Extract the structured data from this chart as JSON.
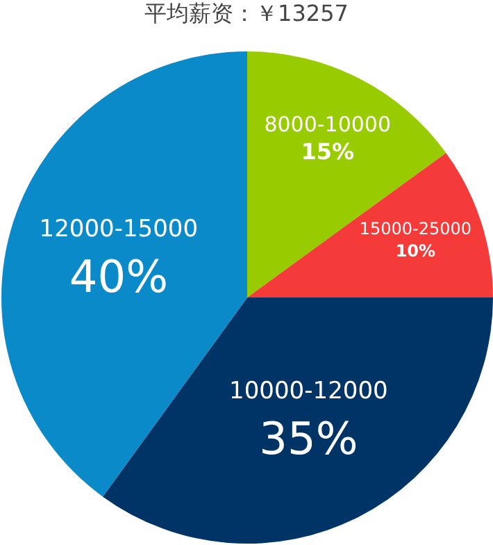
{
  "chart_data": {
    "type": "pie",
    "title": "平均薪资：￥13257",
    "categories": [
      "8000-10000",
      "15000-25000",
      "10000-12000",
      "12000-15000"
    ],
    "values": [
      15,
      10,
      35,
      40
    ],
    "value_labels": [
      "15%",
      "10%",
      "35%",
      "40%"
    ],
    "colors": [
      "#99cc00",
      "#f53a3a",
      "#003366",
      "#0a8ac8"
    ],
    "legend": false
  }
}
